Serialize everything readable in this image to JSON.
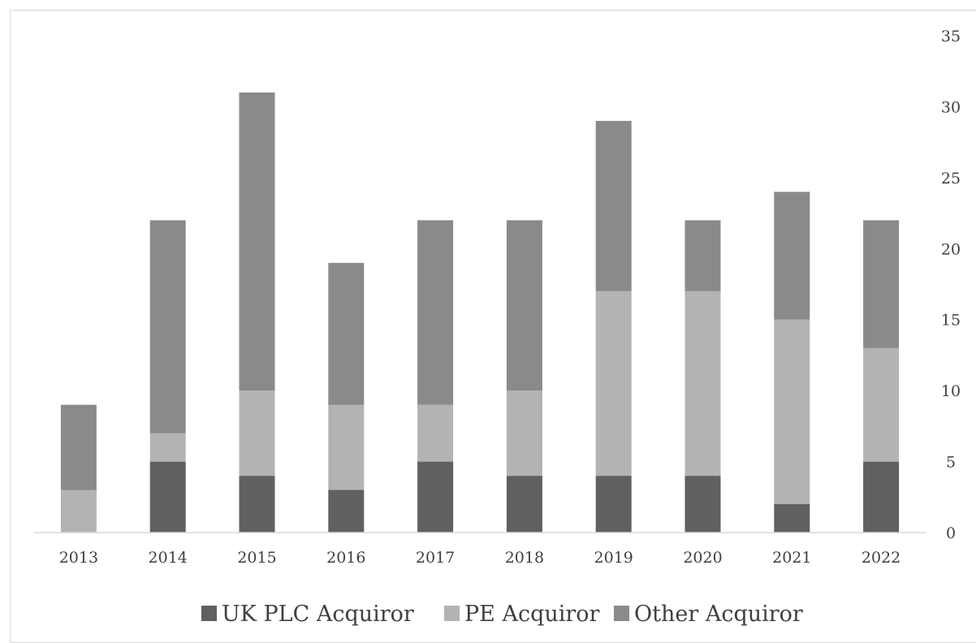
{
  "chart_data": {
    "type": "bar",
    "stacked": true,
    "categories": [
      "2013",
      "2014",
      "2015",
      "2016",
      "2017",
      "2018",
      "2019",
      "2020",
      "2021",
      "2022"
    ],
    "series": [
      {
        "name": "UK PLC Acquiror",
        "color": "#606060",
        "values": [
          0,
          5,
          4,
          3,
          5,
          4,
          4,
          4,
          2,
          5
        ]
      },
      {
        "name": "PE Acquiror",
        "color": "#b3b3b3",
        "values": [
          3,
          2,
          6,
          6,
          4,
          6,
          13,
          13,
          13,
          8
        ]
      },
      {
        "name": "Other Acquiror",
        "color": "#8a8a8a",
        "values": [
          6,
          15,
          21,
          10,
          13,
          12,
          12,
          5,
          9,
          9
        ]
      }
    ],
    "ylim": [
      0,
      35
    ],
    "yticks": [
      0,
      5,
      10,
      15,
      20,
      25,
      30,
      35
    ],
    "y_axis_position": "right",
    "grid": false,
    "legend_position": "bottom",
    "title": "",
    "xlabel": "",
    "ylabel": ""
  }
}
